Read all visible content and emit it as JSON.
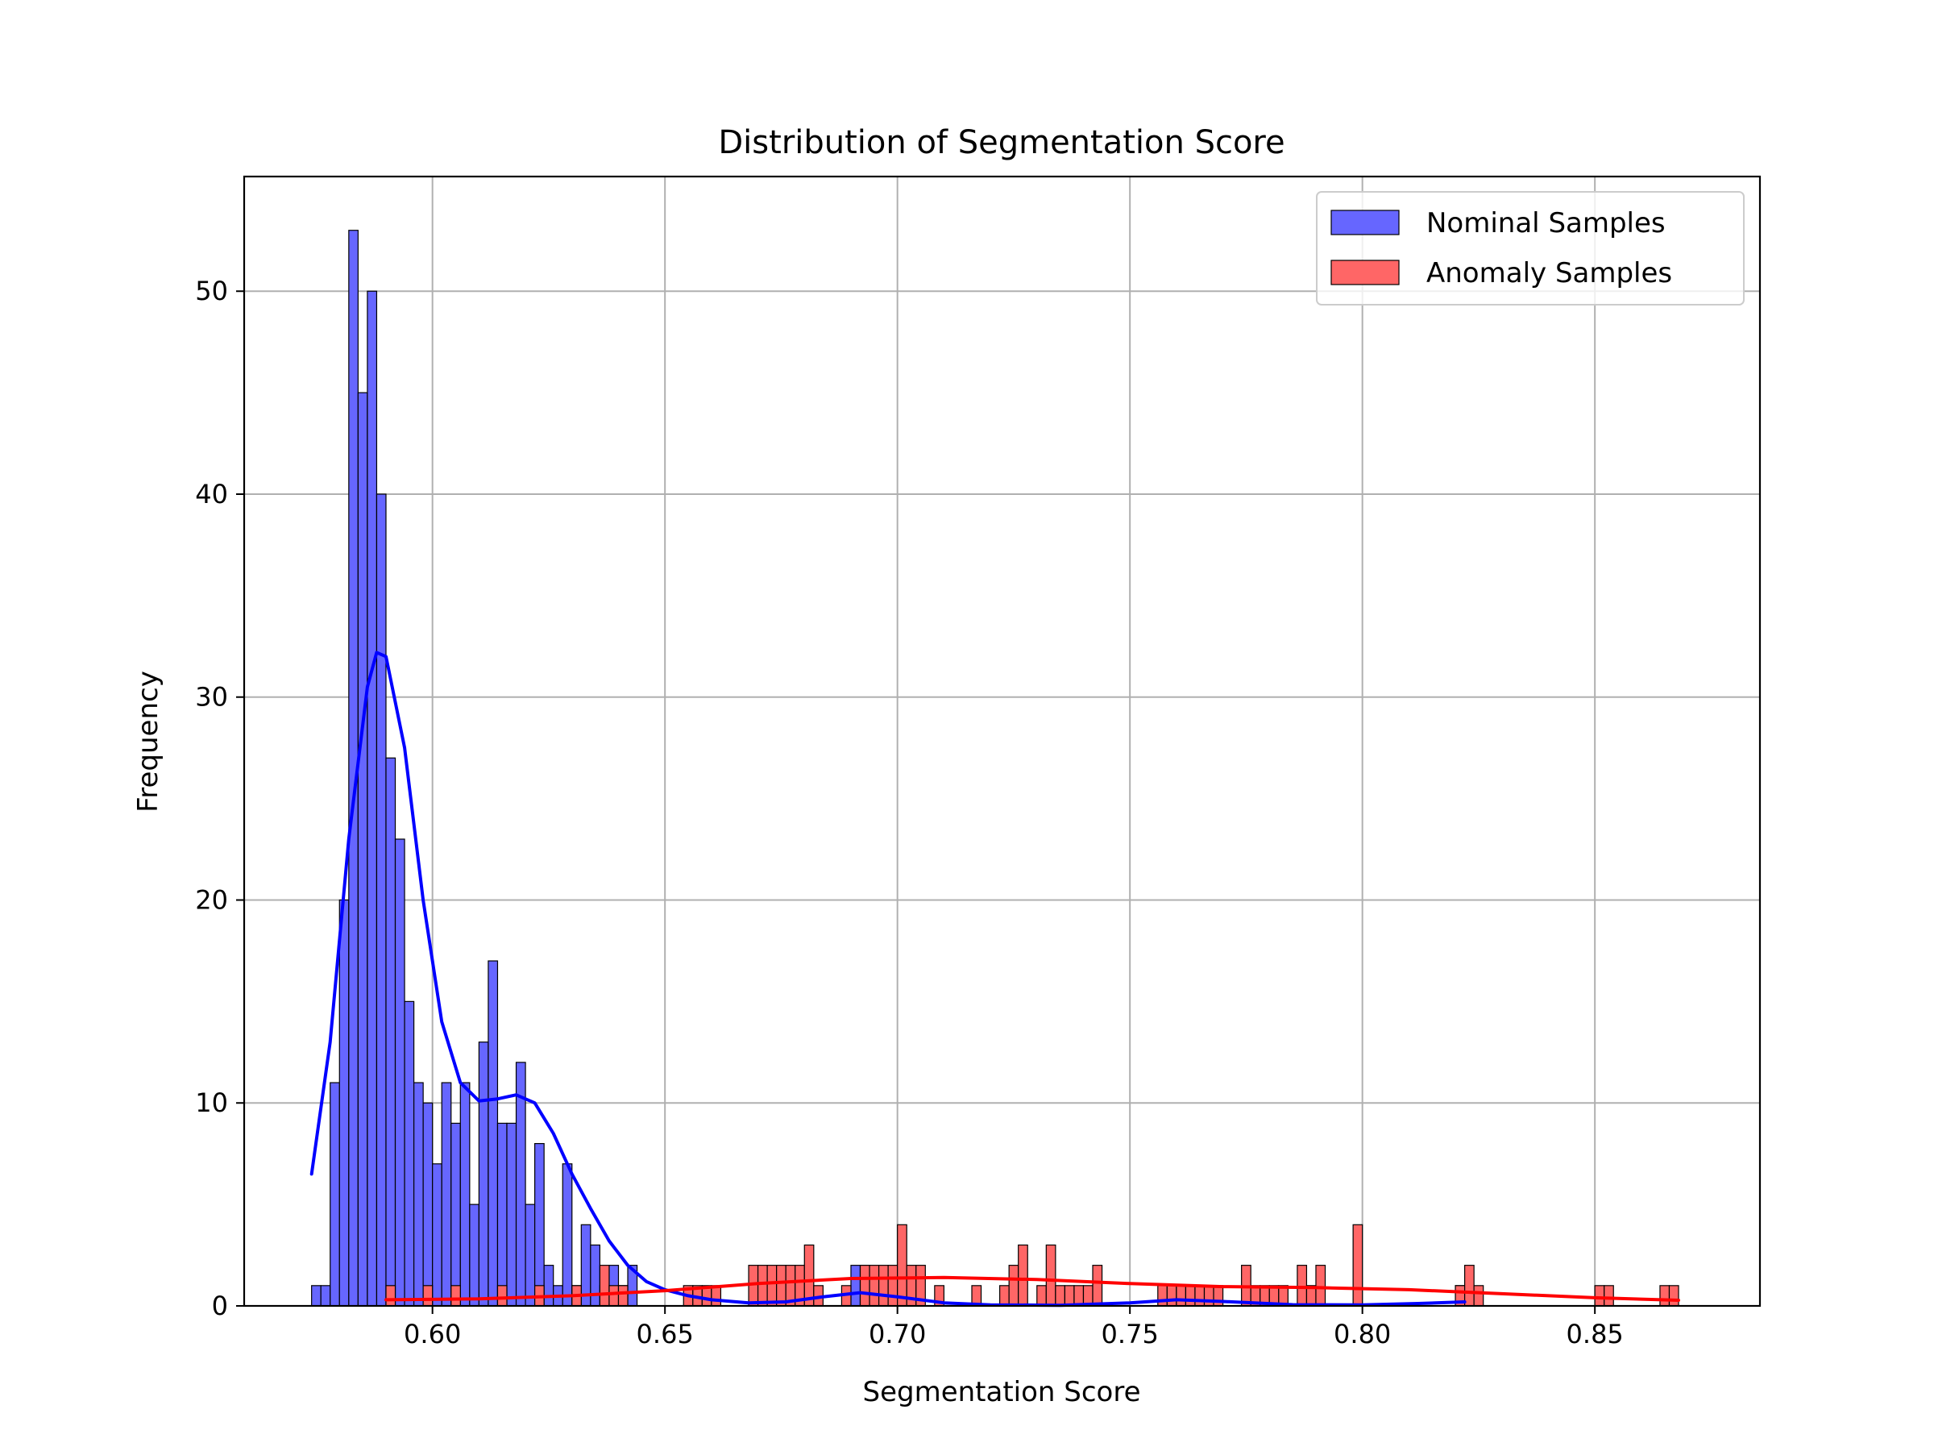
{
  "chart_data": {
    "type": "bar",
    "title": "Distribution of Segmentation Score",
    "xlabel": "Segmentation Score",
    "ylabel": "Frequency",
    "xlim": [
      0.5595,
      0.8855
    ],
    "ylim": [
      0,
      55.65
    ],
    "xticks": [
      0.6,
      0.65,
      0.7,
      0.75,
      0.8,
      0.85
    ],
    "xtick_labels": [
      "0.60",
      "0.65",
      "0.70",
      "0.75",
      "0.80",
      "0.85"
    ],
    "yticks": [
      0,
      10,
      20,
      30,
      40,
      50
    ],
    "ytick_labels": [
      "0",
      "10",
      "20",
      "30",
      "40",
      "50"
    ],
    "grid": true,
    "legend_position": "top-right",
    "bin_width": 0.002,
    "series": [
      {
        "name": "Nominal Samples",
        "bar_color": "#6666ff",
        "kde_color": "#0000ff",
        "bins": [
          [
            0.574,
            1
          ],
          [
            0.576,
            1
          ],
          [
            0.578,
            11
          ],
          [
            0.58,
            20
          ],
          [
            0.582,
            53
          ],
          [
            0.584,
            45
          ],
          [
            0.586,
            50
          ],
          [
            0.588,
            40
          ],
          [
            0.59,
            27
          ],
          [
            0.592,
            23
          ],
          [
            0.594,
            15
          ],
          [
            0.596,
            11
          ],
          [
            0.598,
            10
          ],
          [
            0.6,
            7
          ],
          [
            0.602,
            11
          ],
          [
            0.604,
            9
          ],
          [
            0.606,
            11
          ],
          [
            0.608,
            5
          ],
          [
            0.61,
            13
          ],
          [
            0.612,
            17
          ],
          [
            0.614,
            9
          ],
          [
            0.616,
            9
          ],
          [
            0.618,
            12
          ],
          [
            0.62,
            5
          ],
          [
            0.622,
            8
          ],
          [
            0.624,
            2
          ],
          [
            0.626,
            1
          ],
          [
            0.628,
            7
          ],
          [
            0.63,
            1
          ],
          [
            0.632,
            4
          ],
          [
            0.634,
            3
          ],
          [
            0.636,
            1
          ],
          [
            0.638,
            2
          ],
          [
            0.64,
            1
          ],
          [
            0.642,
            2
          ],
          [
            0.69,
            2
          ],
          [
            0.692,
            2
          ],
          [
            0.694,
            1
          ],
          [
            0.696,
            1
          ],
          [
            0.758,
            1
          ],
          [
            0.76,
            1
          ],
          [
            0.762,
            1
          ],
          [
            0.764,
            1
          ],
          [
            0.82,
            1
          ]
        ],
        "kde": [
          [
            0.574,
            6.5
          ],
          [
            0.578,
            13
          ],
          [
            0.582,
            23
          ],
          [
            0.586,
            30.5
          ],
          [
            0.588,
            32.2
          ],
          [
            0.59,
            32
          ],
          [
            0.594,
            27.5
          ],
          [
            0.598,
            20
          ],
          [
            0.602,
            14
          ],
          [
            0.606,
            11
          ],
          [
            0.61,
            10.1
          ],
          [
            0.614,
            10.2
          ],
          [
            0.618,
            10.4
          ],
          [
            0.622,
            10
          ],
          [
            0.626,
            8.5
          ],
          [
            0.63,
            6.5
          ],
          [
            0.634,
            4.8
          ],
          [
            0.638,
            3.2
          ],
          [
            0.642,
            2
          ],
          [
            0.646,
            1.2
          ],
          [
            0.65,
            0.8
          ],
          [
            0.655,
            0.5
          ],
          [
            0.66,
            0.3
          ],
          [
            0.668,
            0.15
          ],
          [
            0.676,
            0.2
          ],
          [
            0.684,
            0.45
          ],
          [
            0.692,
            0.65
          ],
          [
            0.7,
            0.45
          ],
          [
            0.71,
            0.15
          ],
          [
            0.72,
            0.05
          ],
          [
            0.735,
            0.03
          ],
          [
            0.75,
            0.15
          ],
          [
            0.76,
            0.3
          ],
          [
            0.77,
            0.22
          ],
          [
            0.785,
            0.06
          ],
          [
            0.8,
            0.05
          ],
          [
            0.812,
            0.12
          ],
          [
            0.822,
            0.2
          ]
        ]
      },
      {
        "name": "Anomaly Samples",
        "bar_color": "#ff6666",
        "kde_color": "#ff0000",
        "bins": [
          [
            0.59,
            1
          ],
          [
            0.598,
            1
          ],
          [
            0.604,
            1
          ],
          [
            0.614,
            1
          ],
          [
            0.622,
            1
          ],
          [
            0.63,
            1
          ],
          [
            0.636,
            2
          ],
          [
            0.638,
            1
          ],
          [
            0.64,
            1
          ],
          [
            0.654,
            1
          ],
          [
            0.656,
            1
          ],
          [
            0.658,
            1
          ],
          [
            0.66,
            1
          ],
          [
            0.668,
            2
          ],
          [
            0.67,
            2
          ],
          [
            0.672,
            2
          ],
          [
            0.674,
            2
          ],
          [
            0.676,
            2
          ],
          [
            0.678,
            2
          ],
          [
            0.68,
            3
          ],
          [
            0.682,
            1
          ],
          [
            0.688,
            1
          ],
          [
            0.692,
            2
          ],
          [
            0.694,
            2
          ],
          [
            0.696,
            2
          ],
          [
            0.698,
            2
          ],
          [
            0.7,
            4
          ],
          [
            0.702,
            2
          ],
          [
            0.704,
            2
          ],
          [
            0.708,
            1
          ],
          [
            0.716,
            1
          ],
          [
            0.722,
            1
          ],
          [
            0.724,
            2
          ],
          [
            0.726,
            3
          ],
          [
            0.73,
            1
          ],
          [
            0.732,
            3
          ],
          [
            0.734,
            1
          ],
          [
            0.736,
            1
          ],
          [
            0.738,
            1
          ],
          [
            0.74,
            1
          ],
          [
            0.742,
            2
          ],
          [
            0.756,
            1
          ],
          [
            0.758,
            1
          ],
          [
            0.76,
            1
          ],
          [
            0.762,
            1
          ],
          [
            0.764,
            1
          ],
          [
            0.766,
            1
          ],
          [
            0.768,
            1
          ],
          [
            0.774,
            2
          ],
          [
            0.776,
            1
          ],
          [
            0.778,
            1
          ],
          [
            0.78,
            1
          ],
          [
            0.782,
            1
          ],
          [
            0.786,
            2
          ],
          [
            0.788,
            1
          ],
          [
            0.79,
            2
          ],
          [
            0.798,
            4
          ],
          [
            0.82,
            1
          ],
          [
            0.822,
            2
          ],
          [
            0.824,
            1
          ],
          [
            0.85,
            1
          ],
          [
            0.852,
            1
          ],
          [
            0.864,
            1
          ],
          [
            0.866,
            1
          ]
        ],
        "kde": [
          [
            0.59,
            0.3
          ],
          [
            0.61,
            0.35
          ],
          [
            0.63,
            0.5
          ],
          [
            0.65,
            0.75
          ],
          [
            0.67,
            1.1
          ],
          [
            0.69,
            1.35
          ],
          [
            0.71,
            1.4
          ],
          [
            0.73,
            1.3
          ],
          [
            0.75,
            1.1
          ],
          [
            0.77,
            0.95
          ],
          [
            0.79,
            0.9
          ],
          [
            0.81,
            0.8
          ],
          [
            0.83,
            0.6
          ],
          [
            0.85,
            0.4
          ],
          [
            0.868,
            0.28
          ]
        ]
      }
    ]
  }
}
